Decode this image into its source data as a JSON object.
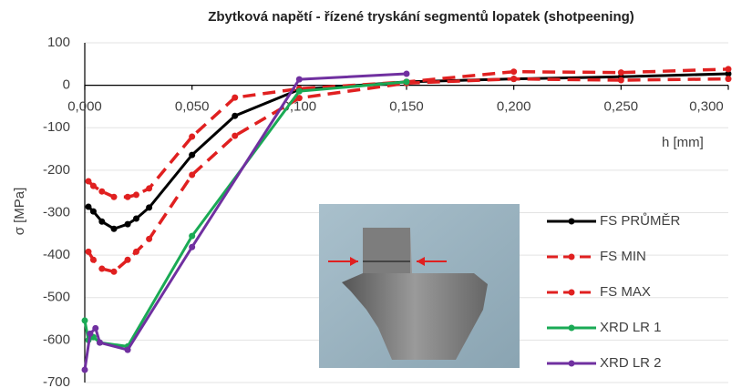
{
  "chart_data": {
    "type": "line",
    "title": "Zbytková napětí - řízené tryskání segmentů lopatek (shotpeening)",
    "x_label": "h [mm]",
    "y_label": "σ [MPa]",
    "xlim": [
      0,
      0.3
    ],
    "xticks": [
      {
        "value": 0,
        "label": "0,000"
      },
      {
        "value": 0.05,
        "label": "0,050"
      },
      {
        "value": 0.1,
        "label": "0,100"
      },
      {
        "value": 0.15,
        "label": "0,150"
      },
      {
        "value": 0.2,
        "label": "0,200"
      },
      {
        "value": 0.25,
        "label": "0,250"
      },
      {
        "value": 0.3,
        "label": "0,300"
      }
    ],
    "ylim": [
      -700,
      100
    ],
    "yticks": [
      100,
      0,
      -100,
      -200,
      -300,
      -400,
      -500,
      -600,
      -700
    ],
    "grid": true,
    "series": [
      {
        "name": "FS PRŮMĚR",
        "color": "#000000",
        "dashed": false,
        "x": [
          0.0017,
          0.004,
          0.008,
          0.0136,
          0.02,
          0.024,
          0.03,
          0.05,
          0.07,
          0.1,
          0.15,
          0.2,
          0.25,
          0.3
        ],
        "values": [
          -286,
          -297,
          -321,
          -338,
          -327,
          -314,
          -288,
          -164,
          -72,
          -10,
          8,
          15,
          20,
          27
        ]
      },
      {
        "name": "FS MIN",
        "color": "#e02020",
        "dashed": true,
        "x": [
          0.0017,
          0.004,
          0.008,
          0.0136,
          0.02,
          0.024,
          0.03,
          0.05,
          0.07,
          0.1,
          0.15,
          0.2,
          0.25,
          0.3
        ],
        "values": [
          -392,
          -411,
          -432,
          -439,
          -411,
          -392,
          -362,
          -211,
          -119,
          -30,
          5,
          15,
          12,
          15
        ]
      },
      {
        "name": "FS MAX",
        "color": "#e02020",
        "dashed": true,
        "x": [
          0.0017,
          0.004,
          0.008,
          0.0136,
          0.02,
          0.024,
          0.03,
          0.05,
          0.07,
          0.1,
          0.15,
          0.2,
          0.25,
          0.3
        ],
        "values": [
          -226,
          -237,
          -250,
          -263,
          -263,
          -258,
          -243,
          -121,
          -29,
          -8,
          8,
          32,
          30,
          38
        ]
      },
      {
        "name": "XRD LR 1",
        "color": "#1aaa55",
        "dashed": false,
        "x": [
          0,
          0.0017,
          0.004,
          0.007,
          0.02,
          0.05,
          0.1,
          0.15
        ],
        "values": [
          -554,
          -600,
          -593,
          -606,
          -615,
          -355,
          -14,
          8
        ]
      },
      {
        "name": "XRD LR 2",
        "color": "#7030a0",
        "dashed": false,
        "x": [
          0,
          0.0025,
          0.005,
          0.007,
          0.02,
          0.05,
          0.1,
          0.15
        ],
        "values": [
          -670,
          -585,
          -572,
          -606,
          -623,
          -381,
          14,
          27
        ]
      }
    ]
  }
}
